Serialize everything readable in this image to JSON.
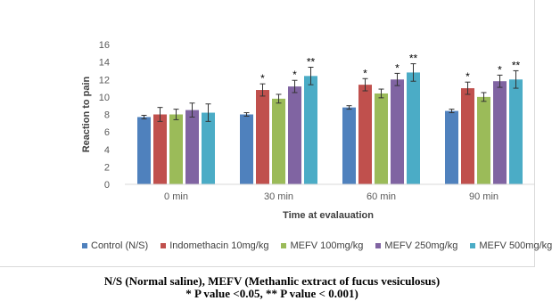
{
  "chart_data": {
    "type": "bar",
    "xlabel": "Time at evalauation",
    "ylabel": "Reaction to pain",
    "ylim": [
      0,
      16
    ],
    "yticks": [
      "0",
      "2",
      "4",
      "6",
      "8",
      "10",
      "12",
      "14",
      "16"
    ],
    "categories": [
      "0 min",
      "30 min",
      "60 min",
      "90 min"
    ],
    "series": [
      {
        "name": "Control (N/S)",
        "color": "#4f81bd",
        "values": [
          7.7,
          8.0,
          8.8,
          8.4
        ],
        "errors": [
          0.2,
          0.2,
          0.2,
          0.2
        ],
        "labels": [
          "",
          "",
          "",
          ""
        ]
      },
      {
        "name": "Indomethacin 10mg/kg",
        "color": "#c0504d",
        "values": [
          8.0,
          10.8,
          11.4,
          11.0
        ],
        "errors": [
          0.8,
          0.7,
          0.7,
          0.7
        ],
        "labels": [
          "",
          "*",
          "*",
          "*"
        ]
      },
      {
        "name": "MEFV 100mg/kg",
        "color": "#9bbb59",
        "values": [
          8.0,
          9.8,
          10.4,
          10.0
        ],
        "errors": [
          0.6,
          0.5,
          0.5,
          0.5
        ],
        "labels": [
          "",
          "",
          "",
          ""
        ]
      },
      {
        "name": "MEFV 250mg/kg",
        "color": "#8064a2",
        "values": [
          8.5,
          11.2,
          12.0,
          11.8
        ],
        "errors": [
          0.8,
          0.7,
          0.7,
          0.7
        ],
        "labels": [
          "",
          "*",
          "*",
          "*"
        ]
      },
      {
        "name": "MEFV 500mg/kg",
        "color": "#4bacc6",
        "values": [
          8.2,
          12.4,
          12.8,
          12.0
        ],
        "errors": [
          1.0,
          1.0,
          1.0,
          1.0
        ],
        "labels": [
          "",
          "**",
          "**",
          "**"
        ]
      }
    ],
    "grid": false,
    "legend_position": "bottom"
  },
  "caption": {
    "line1": "N/S (Normal saline), MEFV (Methanlic extract of fucus vesiculosus)",
    "line2": "* P value <0.05, ** P value < 0.001)"
  }
}
